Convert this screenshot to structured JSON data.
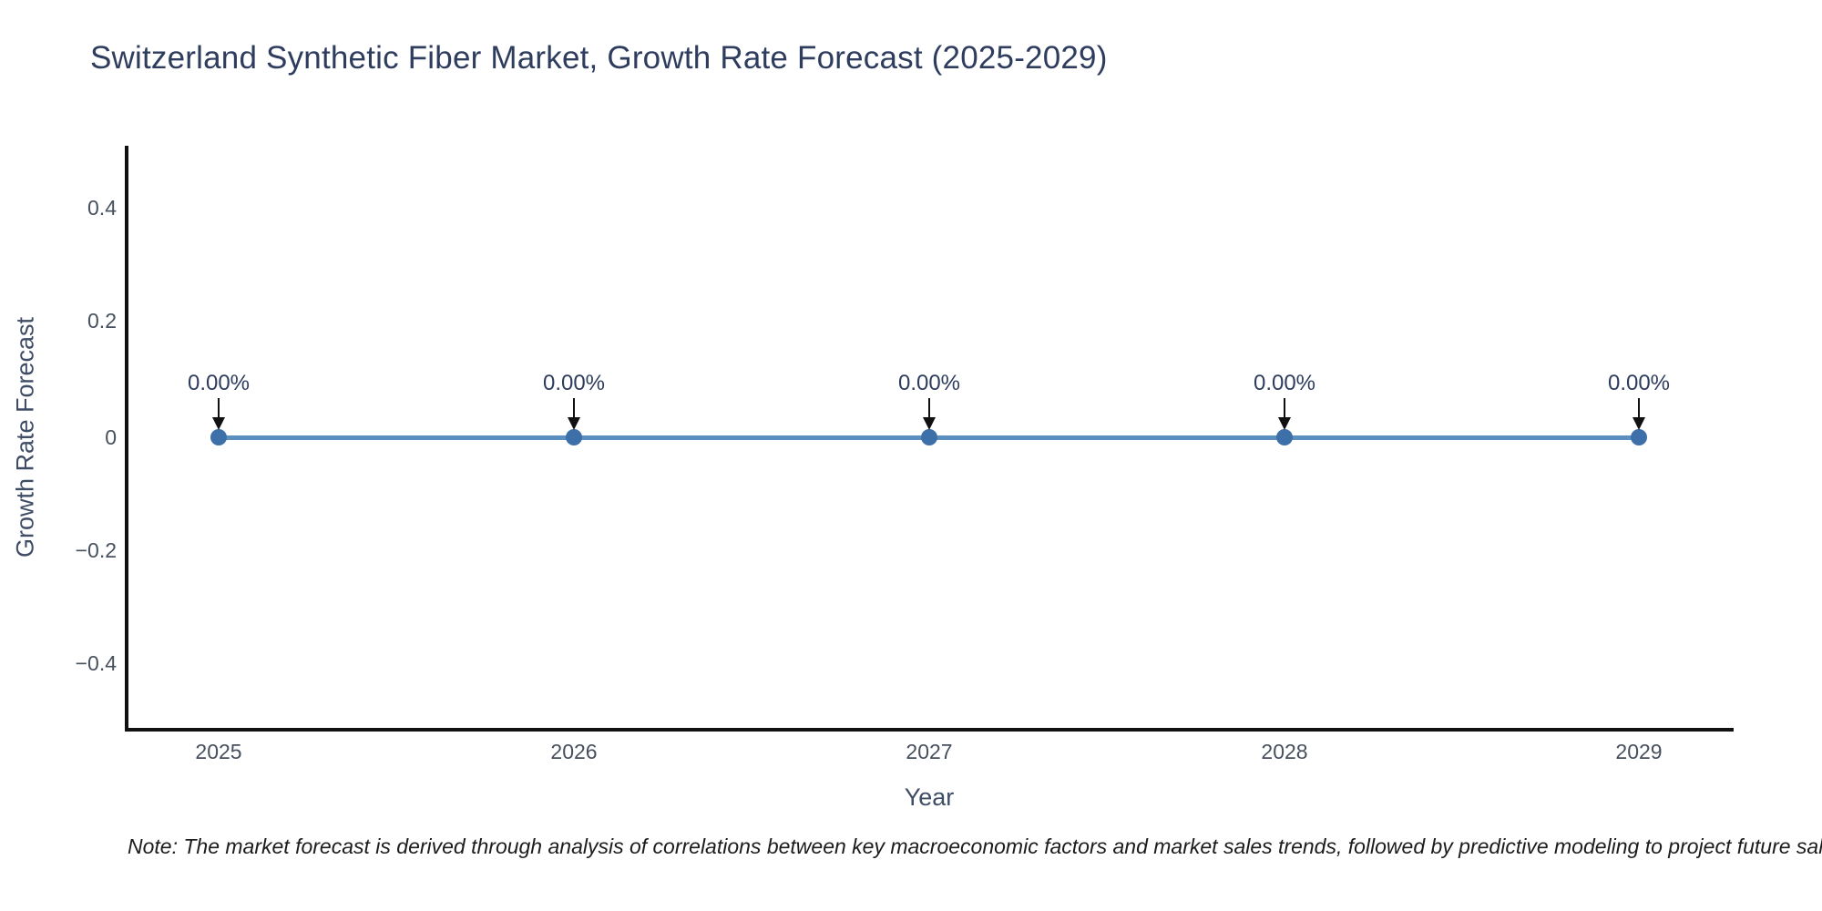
{
  "chart_data": {
    "type": "line",
    "title": "Switzerland Synthetic Fiber Market, Growth Rate Forecast (2025-2029)",
    "xlabel": "Year",
    "ylabel": "Growth Rate Forecast",
    "x": [
      2025,
      2026,
      2027,
      2028,
      2029
    ],
    "series": [
      {
        "name": "Growth Rate Forecast",
        "values": [
          0,
          0,
          0,
          0,
          0
        ],
        "unit": "%"
      }
    ],
    "annotations": [
      "0.00%",
      "0.00%",
      "0.00%",
      "0.00%",
      "0.00%"
    ],
    "x_tick_labels": [
      "2025",
      "2026",
      "2027",
      "2028",
      "2029"
    ],
    "y_tick_labels": [
      "0.4",
      "0.2",
      "0",
      "−0.2",
      "−0.4"
    ],
    "ylim": [
      -0.5,
      0.5
    ],
    "grid": false,
    "legend_position": "none",
    "colors": {
      "line": "#5b8fc0",
      "marker": "#3d70a9",
      "axis": "#111111",
      "title_text": "#2e3c5e",
      "tick_text": "#47505e",
      "background": "#ffffff"
    }
  },
  "note": {
    "text": "Note: The market forecast is derived through analysis of correlations between key macroeconomic factors and market sales trends, followed by predictive modeling to project future sales"
  }
}
